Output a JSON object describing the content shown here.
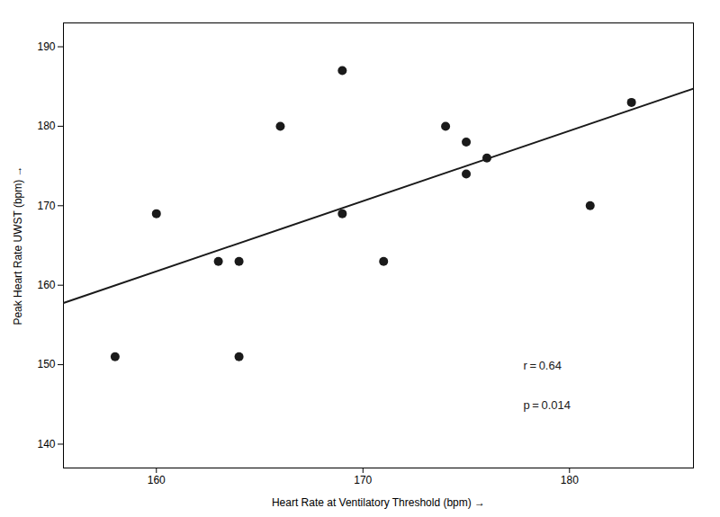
{
  "chart_data": {
    "type": "scatter",
    "xlabel": "Heart Rate at Ventilatory Threshold (bpm)",
    "ylabel": "Peak Heart Rate UWST (bpm)",
    "xlim": [
      155.5,
      186
    ],
    "ylim": [
      137,
      193
    ],
    "xticks": [
      160,
      170,
      180
    ],
    "yticks": [
      140,
      150,
      160,
      170,
      180,
      190
    ],
    "grid": false,
    "annotations": [
      "r = 0.64",
      "p = 0.014"
    ],
    "series": [
      {
        "type": "scatter",
        "color": "#1a1a1a",
        "x": [
          158,
          160,
          163,
          164,
          164,
          166,
          169,
          169,
          171,
          174,
          175,
          175,
          176,
          181,
          183
        ],
        "values": [
          151,
          169,
          163,
          163,
          151,
          180,
          187,
          169,
          163,
          180,
          174,
          178,
          176,
          170,
          183
        ]
      },
      {
        "type": "line",
        "color": "#1a1a1a",
        "x": [
          155.5,
          186
        ],
        "values": [
          157.763,
          184.732
        ]
      }
    ]
  }
}
